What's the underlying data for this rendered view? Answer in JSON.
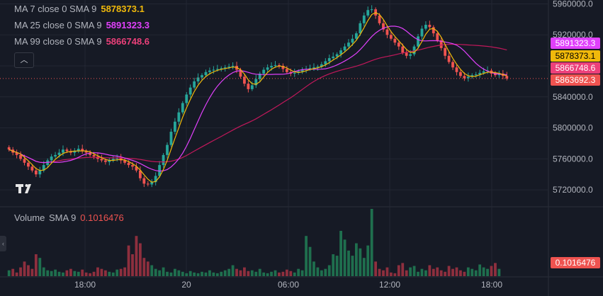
{
  "legend": {
    "ma7": {
      "label": "MA 7 close 0 SMA 9",
      "value": "5878373.1",
      "color": "#f0b90b"
    },
    "ma25": {
      "label": "MA 25 close 0 SMA 9",
      "value": "5891323.3",
      "color": "#e040fb"
    },
    "ma99": {
      "label": "MA 99 close 0 SMA 9",
      "value": "5866748.6",
      "color": "#ec407a"
    },
    "volume": {
      "label": "Volume",
      "sma_label": "SMA 9",
      "value": "0.1016476",
      "color": "#ef5350"
    }
  },
  "icons": {
    "collapse": "chevron-up-icon",
    "side_tab": "chevron-left-icon",
    "logo": "tradingview-logo"
  },
  "axis": {
    "y_labels": [
      "5960000.0",
      "5920000.0",
      "5880000.0",
      "5840000.0",
      "5800000.0",
      "5760000.0",
      "5720000.0"
    ],
    "x_labels": [
      "18:00",
      "20",
      "06:00",
      "12:00",
      "18:00"
    ]
  },
  "price_tags": [
    {
      "name": "ma25-tag",
      "text": "5891323.3",
      "bg": "#e040fb",
      "fg": "#ffffff"
    },
    {
      "name": "ma7-tag",
      "text": "5878373.1",
      "bg": "#f0b90b",
      "fg": "#000000"
    },
    {
      "name": "ma99-tag",
      "text": "5866748.6",
      "bg": "#ec407a",
      "fg": "#ffffff"
    },
    {
      "name": "last-price-tag",
      "text": "5863692.3",
      "bg": "#ef5350",
      "fg": "#ffffff"
    },
    {
      "name": "volume-tag",
      "text": "0.1016476",
      "bg": "#ef5350",
      "fg": "#ffffff"
    }
  ],
  "colors": {
    "up": "#26a69a",
    "up_volume": "#1f6f4e",
    "down": "#ef5350",
    "down_volume": "#8e2f3e",
    "background": "#161a25",
    "grid": "#232733",
    "axis_text": "#b2b5be"
  },
  "chart_data": {
    "type": "candlestick",
    "y_range": [
      5700000,
      5965000
    ],
    "last_price": 5863692.3,
    "closes": [
      5772000,
      5768000,
      5765000,
      5760000,
      5755000,
      5750000,
      5745000,
      5740000,
      5745000,
      5752000,
      5758000,
      5763000,
      5765000,
      5768000,
      5772000,
      5770000,
      5768000,
      5770000,
      5773000,
      5770000,
      5768000,
      5765000,
      5763000,
      5760000,
      5758000,
      5756000,
      5758000,
      5760000,
      5761000,
      5758000,
      5755000,
      5752000,
      5750000,
      5745000,
      5735000,
      5728000,
      5727000,
      5730000,
      5738000,
      5752000,
      5765000,
      5778000,
      5795000,
      5808000,
      5820000,
      5832000,
      5843000,
      5852000,
      5860000,
      5865000,
      5868000,
      5872000,
      5874000,
      5875000,
      5876000,
      5877000,
      5878000,
      5879000,
      5880000,
      5875000,
      5866000,
      5857000,
      5850000,
      5855000,
      5863000,
      5870000,
      5875000,
      5878000,
      5880000,
      5881000,
      5880000,
      5876000,
      5872000,
      5870000,
      5871000,
      5873000,
      5875000,
      5876000,
      5877000,
      5878000,
      5879000,
      5882000,
      5886000,
      5890000,
      5892000,
      5895000,
      5900000,
      5905000,
      5910000,
      5915000,
      5922000,
      5935000,
      5945000,
      5952000,
      5953000,
      5945000,
      5935000,
      5927000,
      5920000,
      5915000,
      5910000,
      5905000,
      5897000,
      5893000,
      5895000,
      5905000,
      5918000,
      5928000,
      5933000,
      5930000,
      5922000,
      5913000,
      5903000,
      5893000,
      5885000,
      5878000,
      5872000,
      5867000,
      5864000,
      5866000,
      5868000,
      5869000,
      5871000,
      5873000,
      5874000,
      5870000,
      5868000,
      5870000,
      5867000,
      5863692
    ],
    "ma7": {
      "name": "MA 7",
      "value": 5878373.1
    },
    "ma25": {
      "name": "MA 25",
      "value": 5891323.3
    },
    "ma99": {
      "name": "MA 99",
      "value": 5866748.6
    },
    "volume": {
      "sma_value": 0.1016476,
      "values": [
        0.08,
        0.1,
        0.05,
        0.12,
        0.2,
        0.15,
        0.1,
        0.3,
        0.25,
        0.12,
        0.08,
        0.07,
        0.09,
        0.06,
        0.05,
        0.08,
        0.1,
        0.07,
        0.06,
        0.09,
        0.05,
        0.04,
        0.06,
        0.12,
        0.1,
        0.08,
        0.06,
        0.05,
        0.09,
        0.1,
        0.12,
        0.42,
        0.3,
        0.55,
        0.45,
        0.25,
        0.2,
        0.15,
        0.1,
        0.08,
        0.12,
        0.06,
        0.05,
        0.1,
        0.08,
        0.06,
        0.04,
        0.07,
        0.05,
        0.04,
        0.06,
        0.05,
        0.08,
        0.05,
        0.04,
        0.06,
        0.08,
        0.1,
        0.15,
        0.1,
        0.08,
        0.12,
        0.07,
        0.08,
        0.06,
        0.1,
        0.05,
        0.04,
        0.06,
        0.08,
        0.05,
        0.06,
        0.09,
        0.07,
        0.05,
        0.1,
        0.08,
        0.55,
        0.4,
        0.2,
        0.12,
        0.08,
        0.1,
        0.15,
        0.3,
        0.28,
        0.62,
        0.5,
        0.35,
        0.28,
        0.45,
        0.38,
        0.25,
        0.42,
        0.92,
        0.2,
        0.1,
        0.08,
        0.12,
        0.05,
        0.04,
        0.15,
        0.18,
        0.08,
        0.12,
        0.14,
        0.06,
        0.1,
        0.08,
        0.15,
        0.1,
        0.12,
        0.08,
        0.06,
        0.14,
        0.1,
        0.12,
        0.08,
        0.06,
        0.12,
        0.1,
        0.08,
        0.16,
        0.12,
        0.1,
        0.14,
        0.18,
        0.1
      ]
    }
  }
}
